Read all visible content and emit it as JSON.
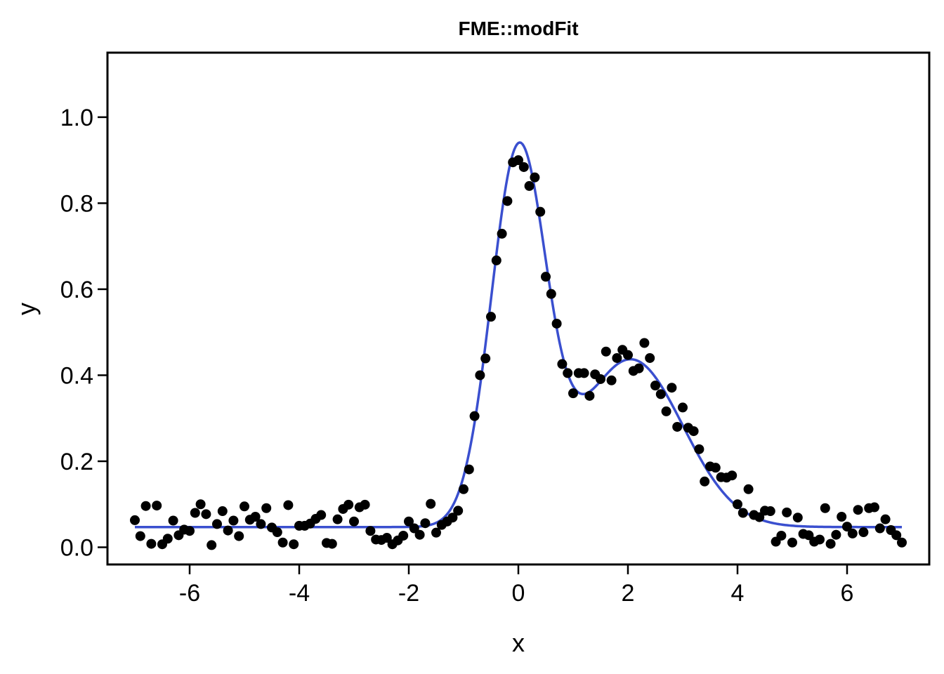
{
  "chart_data": {
    "type": "scatter",
    "title": "FME::modFit",
    "xlabel": "x",
    "ylabel": "y",
    "xlim": [
      -7.5,
      7.5
    ],
    "ylim": [
      -0.04,
      1.15
    ],
    "x_ticks": [
      -6,
      -4,
      -2,
      0,
      2,
      4,
      6
    ],
    "x_tick_labels": [
      "-6",
      "-4",
      "-2",
      "0",
      "2",
      "4",
      "6"
    ],
    "y_ticks": [
      0.0,
      0.2,
      0.4,
      0.6,
      0.8,
      1.0
    ],
    "y_tick_labels": [
      "0.0",
      "0.2",
      "0.4",
      "0.6",
      "0.8",
      "1.0"
    ],
    "grid": false,
    "legend": "none",
    "colors": {
      "points": "#000000",
      "fit_line": "#3a4fcf",
      "frame": "#000000"
    },
    "series": [
      {
        "kind": "points",
        "x": [
          -7.0,
          -6.9,
          -6.8,
          -6.7,
          -6.6,
          -6.5,
          -6.4,
          -6.3,
          -6.2,
          -6.1,
          -6.0,
          -5.9,
          -5.8,
          -5.7,
          -5.6,
          -5.5,
          -5.4,
          -5.3,
          -5.2,
          -5.1,
          -5.0,
          -4.9,
          -4.8,
          -4.7,
          -4.6,
          -4.5,
          -4.4,
          -4.3,
          -4.2,
          -4.1,
          -4.0,
          -3.9,
          -3.8,
          -3.7,
          -3.6,
          -3.5,
          -3.4,
          -3.3,
          -3.2,
          -3.1,
          -3.0,
          -2.9,
          -2.8,
          -2.7,
          -2.6,
          -2.5,
          -2.4,
          -2.3,
          -2.2,
          -2.1,
          -2.0,
          -1.9,
          -1.8,
          -1.7,
          -1.6,
          -1.5,
          -1.4,
          -1.3,
          -1.2,
          -1.1,
          -1.0,
          -0.9,
          -0.8,
          -0.7,
          -0.6,
          -0.5,
          -0.4,
          -0.3,
          -0.2,
          -0.1,
          0.0,
          0.1,
          0.2,
          0.3,
          0.4,
          0.5,
          0.6,
          0.7,
          0.8,
          0.9,
          1.0,
          1.1,
          1.2,
          1.3,
          1.4,
          1.5,
          1.6,
          1.7,
          1.8,
          1.9,
          2.0,
          2.1,
          2.2,
          2.3,
          2.4,
          2.5,
          2.6,
          2.7,
          2.8,
          2.9,
          3.0,
          3.1,
          3.2,
          3.3,
          3.4,
          3.5,
          3.6,
          3.7,
          3.8,
          3.9,
          4.0,
          4.1,
          4.2,
          4.3,
          4.4,
          4.5,
          4.6,
          4.7,
          4.8,
          4.9,
          5.0,
          5.1,
          5.2,
          5.3,
          5.4,
          5.5,
          5.6,
          5.7,
          5.8,
          5.9,
          6.0,
          6.1,
          6.2,
          6.3,
          6.4,
          6.5,
          6.6,
          6.7,
          6.8,
          6.9,
          7.0
        ],
        "y": [
          0.063,
          0.026,
          0.096,
          0.008,
          0.097,
          0.007,
          0.02,
          0.062,
          0.028,
          0.041,
          0.038,
          0.08,
          0.1,
          0.077,
          0.005,
          0.054,
          0.084,
          0.039,
          0.062,
          0.026,
          0.095,
          0.064,
          0.071,
          0.054,
          0.091,
          0.046,
          0.035,
          0.011,
          0.098,
          0.007,
          0.05,
          0.05,
          0.055,
          0.066,
          0.075,
          0.01,
          0.008,
          0.065,
          0.089,
          0.099,
          0.06,
          0.093,
          0.099,
          0.038,
          0.018,
          0.017,
          0.022,
          0.007,
          0.016,
          0.027,
          0.06,
          0.044,
          0.029,
          0.056,
          0.101,
          0.034,
          0.052,
          0.06,
          0.069,
          0.085,
          0.135,
          0.181,
          0.305,
          0.4,
          0.439,
          0.536,
          0.667,
          0.729,
          0.805,
          0.895,
          0.9,
          0.884,
          0.84,
          0.86,
          0.78,
          0.629,
          0.589,
          0.52,
          0.426,
          0.405,
          0.358,
          0.405,
          0.405,
          0.352,
          0.402,
          0.391,
          0.455,
          0.388,
          0.44,
          0.459,
          0.447,
          0.41,
          0.416,
          0.475,
          0.44,
          0.376,
          0.356,
          0.316,
          0.371,
          0.28,
          0.325,
          0.278,
          0.27,
          0.228,
          0.153,
          0.188,
          0.185,
          0.163,
          0.162,
          0.167,
          0.1,
          0.08,
          0.135,
          0.075,
          0.07,
          0.085,
          0.084,
          0.013,
          0.027,
          0.081,
          0.011,
          0.069,
          0.031,
          0.028,
          0.013,
          0.018,
          0.091,
          0.008,
          0.029,
          0.071,
          0.048,
          0.032,
          0.087,
          0.035,
          0.091,
          0.093,
          0.044,
          0.065,
          0.04,
          0.028,
          0.011
        ]
      },
      {
        "kind": "fit_line",
        "model": {
          "baseline": 0.047,
          "peaks": [
            {
              "amplitude": 0.855,
              "center": 0.0,
              "sigma": 0.5
            },
            {
              "amplitude": 0.39,
              "center": 2.05,
              "sigma": 0.95
            }
          ],
          "x_range": [
            -7.0,
            7.0
          ]
        }
      }
    ]
  }
}
